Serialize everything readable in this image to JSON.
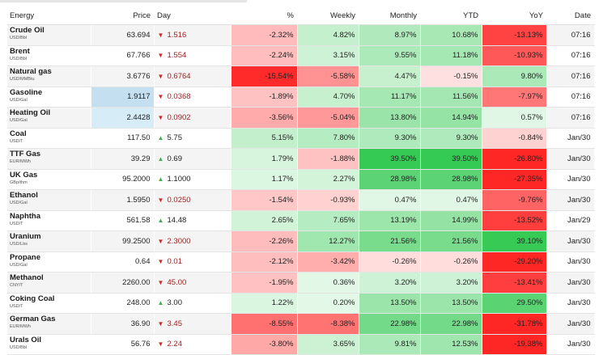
{
  "headers": [
    "Energy",
    "Price",
    "Day",
    "%",
    "Weekly",
    "Monthly",
    "YTD",
    "YoY",
    "Date"
  ],
  "scale": {
    "pos": "#2dc84d",
    "neg": "#ff1f1f",
    "pos_max": 40,
    "neg_max": 16
  },
  "price_highlight": {
    "Gasoline": "#c3dff0",
    "Heating Oil": "#d6edf8"
  },
  "rows": [
    {
      "name": "Crude Oil",
      "unit": "USD/Bbl",
      "price": "63.694",
      "day": "1.516",
      "dir": "down",
      "pct": "-2.32%",
      "weekly": "4.82%",
      "monthly": "8.97%",
      "ytd": "10.68%",
      "yoy": "-13.13%",
      "date": "07:16"
    },
    {
      "name": "Brent",
      "unit": "USD/Bbl",
      "price": "67.766",
      "day": "1.554",
      "dir": "down",
      "pct": "-2.24%",
      "weekly": "3.15%",
      "monthly": "9.55%",
      "ytd": "11.18%",
      "yoy": "-10.93%",
      "date": "07:16"
    },
    {
      "name": "Natural gas",
      "unit": "USD/MMBtu",
      "price": "3.6776",
      "day": "0.6764",
      "dir": "down",
      "pct": "-15.54%",
      "weekly": "-5.58%",
      "monthly": "4.47%",
      "ytd": "-0.15%",
      "yoy": "9.80%",
      "date": "07:16"
    },
    {
      "name": "Gasoline",
      "unit": "USD/Gal",
      "price": "1.9117",
      "day": "0.0368",
      "dir": "down",
      "pct": "-1.89%",
      "weekly": "4.70%",
      "monthly": "11.17%",
      "ytd": "11.56%",
      "yoy": "-7.97%",
      "date": "07:16"
    },
    {
      "name": "Heating Oil",
      "unit": "USD/Gal",
      "price": "2.4428",
      "day": "0.0902",
      "dir": "down",
      "pct": "-3.56%",
      "weekly": "-5.04%",
      "monthly": "13.80%",
      "ytd": "14.94%",
      "yoy": "0.57%",
      "date": "07:16"
    },
    {
      "name": "Coal",
      "unit": "USD/T",
      "price": "117.50",
      "day": "5.75",
      "dir": "up",
      "pct": "5.15%",
      "weekly": "7.80%",
      "monthly": "9.30%",
      "ytd": "9.30%",
      "yoy": "-0.84%",
      "date": "Jan/30"
    },
    {
      "name": "TTF Gas",
      "unit": "EUR/MWh",
      "price": "39.29",
      "day": "0.69",
      "dir": "up",
      "pct": "1.79%",
      "weekly": "-1.88%",
      "monthly": "39.50%",
      "ytd": "39.50%",
      "yoy": "-26.80%",
      "date": "Jan/30"
    },
    {
      "name": "UK Gas",
      "unit": "GBp/thm",
      "price": "95.2000",
      "day": "1.1000",
      "dir": "up",
      "pct": "1.17%",
      "weekly": "2.27%",
      "monthly": "28.98%",
      "ytd": "28.98%",
      "yoy": "-27.35%",
      "date": "Jan/30"
    },
    {
      "name": "Ethanol",
      "unit": "USD/Gal",
      "price": "1.5950",
      "day": "0.0250",
      "dir": "down",
      "pct": "-1.54%",
      "weekly": "-0.93%",
      "monthly": "0.47%",
      "ytd": "0.47%",
      "yoy": "-9.76%",
      "date": "Jan/30"
    },
    {
      "name": "Naphtha",
      "unit": "USD/T",
      "price": "561.58",
      "day": "14.48",
      "dir": "up",
      "pct": "2.65%",
      "weekly": "7.65%",
      "monthly": "13.19%",
      "ytd": "14.99%",
      "yoy": "-13.52%",
      "date": "Jan/29"
    },
    {
      "name": "Uranium",
      "unit": "USD/Lbs",
      "price": "99.2500",
      "day": "2.3000",
      "dir": "down",
      "pct": "-2.26%",
      "weekly": "12.27%",
      "monthly": "21.56%",
      "ytd": "21.56%",
      "yoy": "39.10%",
      "date": "Jan/30"
    },
    {
      "name": "Propane",
      "unit": "USD/Gal",
      "price": "0.64",
      "day": "0.01",
      "dir": "down",
      "pct": "-2.12%",
      "weekly": "-3.42%",
      "monthly": "-0.26%",
      "ytd": "-0.26%",
      "yoy": "-29.20%",
      "date": "Jan/30"
    },
    {
      "name": "Methanol",
      "unit": "CNY/T",
      "price": "2260.00",
      "day": "45.00",
      "dir": "down",
      "pct": "-1.95%",
      "weekly": "0.36%",
      "monthly": "3.20%",
      "ytd": "3.20%",
      "yoy": "-13.41%",
      "date": "Jan/30"
    },
    {
      "name": "Coking Coal",
      "unit": "USD/T",
      "price": "248.00",
      "day": "3.00",
      "dir": "up",
      "pct": "1.22%",
      "weekly": "0.20%",
      "monthly": "13.50%",
      "ytd": "13.50%",
      "yoy": "29.50%",
      "date": "Jan/30"
    },
    {
      "name": "German Gas",
      "unit": "EUR/MWh",
      "price": "36.90",
      "day": "3.45",
      "dir": "down",
      "pct": "-8.55%",
      "weekly": "-8.38%",
      "monthly": "22.98%",
      "ytd": "22.98%",
      "yoy": "-31.78%",
      "date": "Jan/30"
    },
    {
      "name": "Urals Oil",
      "unit": "USD/Bbl",
      "price": "56.76",
      "day": "2.24",
      "dir": "down",
      "pct": "-3.80%",
      "weekly": "3.65%",
      "monthly": "9.81%",
      "ytd": "12.53%",
      "yoy": "-19.38%",
      "date": "Jan/30"
    }
  ]
}
